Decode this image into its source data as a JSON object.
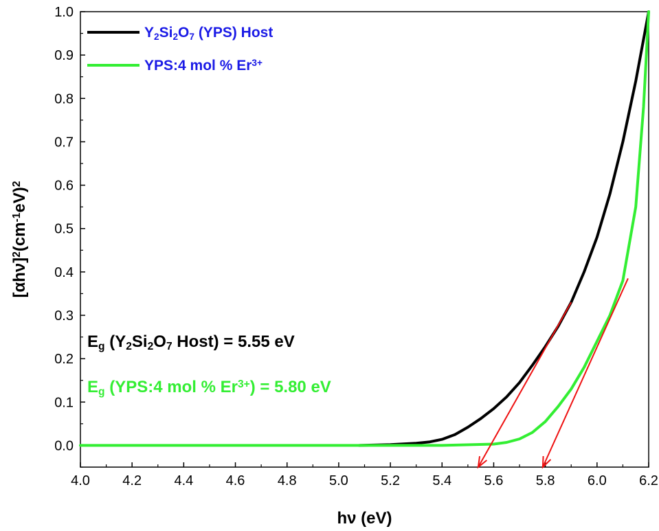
{
  "chart_data": {
    "type": "line",
    "title": "",
    "xlabel": "hν (eV)",
    "ylabel_parts": [
      "[αhν]",
      "2",
      "(cm",
      "-1",
      "eV)",
      "2"
    ],
    "xlim": [
      4.0,
      6.2
    ],
    "ylim": [
      -0.05,
      1.0
    ],
    "xticks": [
      "4.0",
      "4.2",
      "4.4",
      "4.6",
      "4.8",
      "5.0",
      "5.2",
      "5.4",
      "5.6",
      "5.8",
      "6.0",
      "6.2"
    ],
    "yticks": [
      "0.0",
      "0.1",
      "0.2",
      "0.3",
      "0.4",
      "0.5",
      "0.6",
      "0.7",
      "0.8",
      "0.9",
      "1.0"
    ],
    "grid": false,
    "legend_position": "top-left",
    "legend_parts": [
      [
        "Y",
        "2",
        "Si",
        "2",
        "O",
        "7",
        " (YPS) Host"
      ],
      [
        "YPS:4 mol % Er",
        "3+",
        ""
      ]
    ],
    "series": [
      {
        "color": "#000000",
        "x": [
          5.08,
          5.2,
          5.3,
          5.35,
          5.4,
          5.45,
          5.5,
          5.55,
          5.6,
          5.65,
          5.7,
          5.75,
          5.8,
          5.85,
          5.9,
          5.95,
          6.0,
          6.05,
          6.1,
          6.15,
          6.2
        ],
        "y": [
          0.0,
          0.002,
          0.005,
          0.008,
          0.014,
          0.025,
          0.042,
          0.062,
          0.085,
          0.112,
          0.145,
          0.185,
          0.228,
          0.275,
          0.33,
          0.4,
          0.48,
          0.58,
          0.7,
          0.84,
          1.0
        ]
      },
      {
        "color": "#33ee33",
        "x": [
          4.0,
          4.5,
          5.0,
          5.4,
          5.6,
          5.65,
          5.7,
          5.75,
          5.8,
          5.85,
          5.9,
          5.95,
          6.0,
          6.05,
          6.1,
          6.15,
          6.18,
          6.2
        ],
        "y": [
          0.0,
          0.0,
          0.0,
          0.0,
          0.003,
          0.007,
          0.015,
          0.03,
          0.055,
          0.09,
          0.13,
          0.18,
          0.24,
          0.3,
          0.38,
          0.55,
          0.78,
          1.0
        ]
      }
    ],
    "tangent_lines": [
      {
        "color": "#ee1111",
        "from": [
          5.9,
          0.33
        ],
        "to": [
          5.54,
          -0.05
        ]
      },
      {
        "color": "#ee1111",
        "from": [
          6.12,
          0.385
        ],
        "to": [
          5.79,
          -0.05
        ]
      }
    ],
    "annotations": [
      {
        "color": "#000000",
        "parts": [
          "E",
          "g",
          " (Y",
          "2",
          "Si",
          "2",
          "O",
          "7",
          " Host) = 5.55 eV"
        ]
      },
      {
        "color": "#33ee33",
        "parts": [
          "E",
          "g",
          " (YPS:4 mol % Er",
          "3+",
          ") = 5.80 eV"
        ]
      }
    ],
    "legend_label_color": "#1a1ae6"
  }
}
